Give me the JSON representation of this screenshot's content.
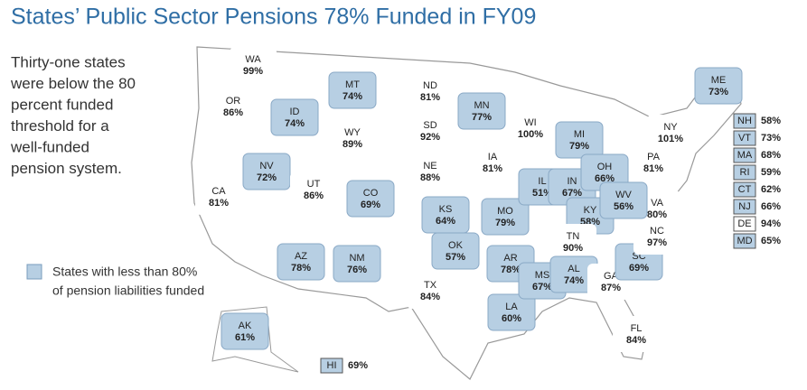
{
  "title": "States’ Public Sector Pensions 78% Funded in FY09",
  "description": [
    "Thirty-one states",
    "were below the 80",
    "percent funded",
    "threshold for a",
    "well-funded",
    "pension system."
  ],
  "legend": {
    "color": "#b7cfe3",
    "lines": [
      "States with less than 80%",
      "of pension liabilities funded"
    ]
  },
  "states": [
    {
      "abbr": "WA",
      "value": 99,
      "value_label": "99%",
      "color": "#ffffff"
    },
    {
      "abbr": "OR",
      "value": 86,
      "value_label": "86%",
      "color": "#ffffff"
    },
    {
      "abbr": "CA",
      "value": 81,
      "value_label": "81%",
      "color": "#ffffff"
    },
    {
      "abbr": "NV",
      "value": 72,
      "value_label": "72%",
      "color": "#b7cfe3"
    },
    {
      "abbr": "ID",
      "value": 74,
      "value_label": "74%",
      "color": "#b7cfe3"
    },
    {
      "abbr": "MT",
      "value": 74,
      "value_label": "74%",
      "color": "#b7cfe3"
    },
    {
      "abbr": "WY",
      "value": 89,
      "value_label": "89%",
      "color": "#ffffff"
    },
    {
      "abbr": "UT",
      "value": 86,
      "value_label": "86%",
      "color": "#ffffff"
    },
    {
      "abbr": "CO",
      "value": 69,
      "value_label": "69%",
      "color": "#b7cfe3"
    },
    {
      "abbr": "AZ",
      "value": 78,
      "value_label": "78%",
      "color": "#b7cfe3"
    },
    {
      "abbr": "NM",
      "value": 76,
      "value_label": "76%",
      "color": "#b7cfe3"
    },
    {
      "abbr": "ND",
      "value": 81,
      "value_label": "81%",
      "color": "#ffffff"
    },
    {
      "abbr": "SD",
      "value": 92,
      "value_label": "92%",
      "color": "#ffffff"
    },
    {
      "abbr": "NE",
      "value": 88,
      "value_label": "88%",
      "color": "#ffffff"
    },
    {
      "abbr": "KS",
      "value": 64,
      "value_label": "64%",
      "color": "#b7cfe3"
    },
    {
      "abbr": "OK",
      "value": 57,
      "value_label": "57%",
      "color": "#b7cfe3"
    },
    {
      "abbr": "TX",
      "value": 84,
      "value_label": "84%",
      "color": "#ffffff"
    },
    {
      "abbr": "MN",
      "value": 77,
      "value_label": "77%",
      "color": "#b7cfe3"
    },
    {
      "abbr": "IA",
      "value": 81,
      "value_label": "81%",
      "color": "#ffffff"
    },
    {
      "abbr": "MO",
      "value": 79,
      "value_label": "79%",
      "color": "#b7cfe3"
    },
    {
      "abbr": "AR",
      "value": 78,
      "value_label": "78%",
      "color": "#b7cfe3"
    },
    {
      "abbr": "LA",
      "value": 60,
      "value_label": "60%",
      "color": "#b7cfe3"
    },
    {
      "abbr": "WI",
      "value": 100,
      "value_label": "100%",
      "color": "#ffffff"
    },
    {
      "abbr": "IL",
      "value": 51,
      "value_label": "51%",
      "color": "#b7cfe3"
    },
    {
      "abbr": "MI",
      "value": 79,
      "value_label": "79%",
      "color": "#b7cfe3"
    },
    {
      "abbr": "IN",
      "value": 67,
      "value_label": "67%",
      "color": "#b7cfe3"
    },
    {
      "abbr": "OH",
      "value": 66,
      "value_label": "66%",
      "color": "#b7cfe3"
    },
    {
      "abbr": "KY",
      "value": 58,
      "value_label": "58%",
      "color": "#b7cfe3"
    },
    {
      "abbr": "TN",
      "value": 90,
      "value_label": "90%",
      "color": "#ffffff"
    },
    {
      "abbr": "MS",
      "value": 67,
      "value_label": "67%",
      "color": "#b7cfe3"
    },
    {
      "abbr": "AL",
      "value": 74,
      "value_label": "74%",
      "color": "#b7cfe3"
    },
    {
      "abbr": "GA",
      "value": 87,
      "value_label": "87%",
      "color": "#ffffff"
    },
    {
      "abbr": "FL",
      "value": 84,
      "value_label": "84%",
      "color": "#ffffff"
    },
    {
      "abbr": "SC",
      "value": 69,
      "value_label": "69%",
      "color": "#b7cfe3"
    },
    {
      "abbr": "NC",
      "value": 97,
      "value_label": "97%",
      "color": "#ffffff"
    },
    {
      "abbr": "VA",
      "value": 80,
      "value_label": "80%",
      "color": "#ffffff"
    },
    {
      "abbr": "WV",
      "value": 56,
      "value_label": "56%",
      "color": "#b7cfe3"
    },
    {
      "abbr": "PA",
      "value": 81,
      "value_label": "81%",
      "color": "#ffffff"
    },
    {
      "abbr": "NY",
      "value": 101,
      "value_label": "101%",
      "color": "#ffffff"
    },
    {
      "abbr": "ME",
      "value": 73,
      "value_label": "73%",
      "color": "#b7cfe3"
    },
    {
      "abbr": "AK",
      "value": 61,
      "value_label": "61%",
      "color": "#b7cfe3"
    }
  ],
  "boxed_states": [
    {
      "abbr": "NH",
      "value": 58,
      "value_label": "58%",
      "color": "#b7cfe3"
    },
    {
      "abbr": "VT",
      "value": 73,
      "value_label": "73%",
      "color": "#b7cfe3"
    },
    {
      "abbr": "MA",
      "value": 68,
      "value_label": "68%",
      "color": "#b7cfe3"
    },
    {
      "abbr": "RI",
      "value": 59,
      "value_label": "59%",
      "color": "#b7cfe3"
    },
    {
      "abbr": "CT",
      "value": 62,
      "value_label": "62%",
      "color": "#b7cfe3"
    },
    {
      "abbr": "NJ",
      "value": 66,
      "value_label": "66%",
      "color": "#b7cfe3"
    },
    {
      "abbr": "DE",
      "value": 94,
      "value_label": "94%",
      "color": "#ffffff"
    },
    {
      "abbr": "MD",
      "value": 65,
      "value_label": "65%",
      "color": "#b7cfe3"
    },
    {
      "abbr": "HI",
      "value": 69,
      "value_label": "69%",
      "color": "#b7cfe3"
    }
  ]
}
